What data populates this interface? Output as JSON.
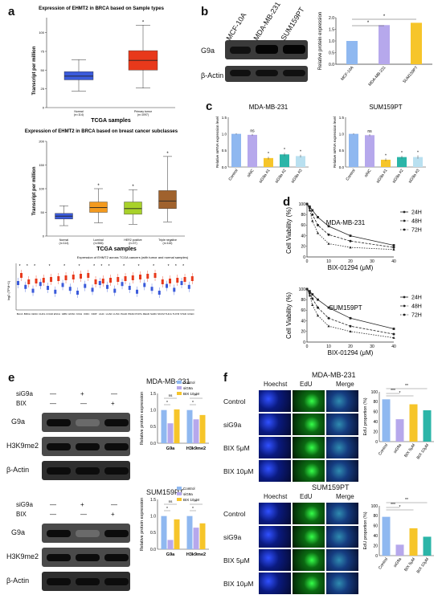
{
  "panels": [
    "a",
    "b",
    "c",
    "d",
    "e",
    "f"
  ],
  "a": {
    "title1": "Expression of EHMT2 in BRCA based on Sample types",
    "ylabel1": "Transcript per million",
    "xlabel1": "TCGA samples",
    "groups1": [
      {
        "name": "Normal",
        "n": "(n=114)",
        "q1": 37,
        "median": 42,
        "q3": 48,
        "lo": 22,
        "hi": 64,
        "color": "#3b5bdb"
      },
      {
        "name": "Primary tumor",
        "n": "(n=1097)",
        "q1": 50,
        "median": 63,
        "q3": 76,
        "lo": 26,
        "hi": 110,
        "color": "#e8391b"
      }
    ],
    "title2": "Expression of EHMT2 in BRCA based on breast cancer subclasses",
    "ylabel2": "Transcript per million",
    "xlabel2": "TCGA samples",
    "groups2": [
      {
        "name": "Normal",
        "n": "(n=114)",
        "q1": 36,
        "median": 42,
        "q3": 48,
        "lo": 22,
        "hi": 64,
        "color": "#3b5bdb"
      },
      {
        "name": "Luminal",
        "n": "(n=566)",
        "q1": 50,
        "median": 60,
        "q3": 72,
        "lo": 28,
        "hi": 100,
        "color": "#f39a1e"
      },
      {
        "name": "HER2 positive",
        "n": "(n=37)",
        "q1": 46,
        "median": 58,
        "q3": 72,
        "lo": 25,
        "hi": 98,
        "color": "#a8d12a"
      },
      {
        "name": "Triple negative",
        "n": "(n=116)",
        "q1": 58,
        "median": 74,
        "q3": 96,
        "lo": 30,
        "hi": 168,
        "color": "#a0622d"
      }
    ],
    "title3": "Expression of EHMT2 across TCGA cancers (with tumor and normal samples)",
    "cancers": [
      "BLCA",
      "BRCA",
      "CESC",
      "CHOL",
      "COAD",
      "ESCA",
      "GBM",
      "HNSC",
      "KICH",
      "KIRC",
      "KIRP",
      "LIHC",
      "LUAD",
      "LUSC",
      "PAAD",
      "PRAD",
      "PCPG",
      "READ",
      "SARC",
      "SKCM",
      "THCA",
      "THYM",
      "STAD",
      "UCEC"
    ],
    "ylabel3": "log2 (TPM+1)"
  },
  "b": {
    "lanes": [
      "MCF-10A",
      "MDA-MB-231",
      "SUM159PT"
    ],
    "rows": [
      "G9a",
      "β-Actin"
    ],
    "chart_data": {
      "type": "bar",
      "categories": [
        "MCF-10A",
        "MDA-MB-231",
        "SUM159PT"
      ],
      "values": [
        1.0,
        1.68,
        1.78
      ],
      "ylabel": "Relative protein expression",
      "ylim": [
        0,
        2.0
      ],
      "yticks": [
        "0.0",
        "0.5",
        "1.0",
        "1.5",
        "2.0"
      ],
      "colors": [
        "#8fb8f0",
        "#b6a8ec",
        "#f6c52a"
      ],
      "sig": [
        "*",
        "*"
      ]
    }
  },
  "c": {
    "chart_data": [
      {
        "type": "bar",
        "title": "MDA-MB-231",
        "categories": [
          "Control",
          "siNC",
          "siG9a #1",
          "siG9a #2",
          "siG9a #3"
        ],
        "values": [
          1.0,
          0.97,
          0.27,
          0.38,
          0.33
        ],
        "errors": [
          0.02,
          0.03,
          0.04,
          0.05,
          0.04
        ],
        "ylabel": "Relative mRNA expression level",
        "ylim": [
          0,
          1.5
        ],
        "yticks": [
          "0.0",
          "0.5",
          "1.0",
          "1.5"
        ],
        "colors": [
          "#8fb8f0",
          "#b6a8ec",
          "#f6c52a",
          "#2bb5a8",
          "#b9e0f0"
        ],
        "labels": [
          "",
          "ns",
          "*",
          "*",
          "*"
        ]
      },
      {
        "type": "bar",
        "title": "SUM159PT",
        "categories": [
          "Control",
          "siNC",
          "siG9a #1",
          "siG9a #2",
          "siG9a #3"
        ],
        "values": [
          1.0,
          0.96,
          0.22,
          0.3,
          0.3
        ],
        "errors": [
          0.02,
          0.03,
          0.04,
          0.04,
          0.05
        ],
        "ylabel": "Relative mRNA expression level",
        "ylim": [
          0,
          1.5
        ],
        "yticks": [
          "0.0",
          "0.5",
          "1.0",
          "1.5"
        ],
        "colors": [
          "#8fb8f0",
          "#b6a8ec",
          "#f6c52a",
          "#2bb5a8",
          "#b9e0f0"
        ],
        "labels": [
          "",
          "ns",
          "*",
          "*",
          "*"
        ]
      }
    ]
  },
  "d": {
    "chart_data": [
      {
        "type": "line",
        "title": "MDA-MB-231",
        "xlabel": "BIX-01294 (μM)",
        "ylabel": "Cell Viability (%)",
        "x": [
          0,
          1.25,
          2.5,
          5,
          10,
          20,
          40
        ],
        "xticks": [
          "0",
          "10",
          "20",
          "30",
          "40"
        ],
        "ylim": [
          0,
          100
        ],
        "yticks": [
          "0",
          "20",
          "40",
          "60",
          "80",
          "100"
        ],
        "series": [
          {
            "name": "24H",
            "values": [
              100,
              95,
              88,
              75,
              58,
              40,
              22
            ]
          },
          {
            "name": "48H",
            "values": [
              100,
              92,
              80,
              60,
              42,
              30,
              18
            ]
          },
          {
            "name": "72H",
            "values": [
              100,
              88,
              68,
              45,
              25,
              18,
              14
            ]
          }
        ]
      },
      {
        "type": "line",
        "title": "SUM159PT",
        "xlabel": "BIX-01294 (μM)",
        "ylabel": "Cell Viability (%)",
        "x": [
          0,
          1.25,
          2.5,
          5,
          10,
          20,
          40
        ],
        "xticks": [
          "0",
          "10",
          "20",
          "30",
          "40"
        ],
        "ylim": [
          0,
          100
        ],
        "yticks": [
          "0",
          "20",
          "40",
          "60",
          "80",
          "100"
        ],
        "series": [
          {
            "name": "24H",
            "values": [
              100,
              96,
              90,
              80,
              65,
              45,
              25
            ]
          },
          {
            "name": "48H",
            "values": [
              100,
              92,
              82,
              65,
              45,
              30,
              15
            ]
          },
          {
            "name": "72H",
            "values": [
              100,
              88,
              70,
              50,
              30,
              20,
              8
            ]
          }
        ]
      }
    ]
  },
  "e": {
    "blots": [
      {
        "cell": "MDA-MB-231",
        "treat_rows": [
          "siG9a",
          "BIX"
        ],
        "signs": [
          [
            "—",
            "+",
            "—"
          ],
          [
            "—",
            "—",
            "+"
          ]
        ],
        "rows": [
          "G9a",
          "H3K9me2",
          "β-Actin"
        ]
      },
      {
        "cell": "SUM159PT",
        "treat_rows": [
          "siG9a",
          "BIX"
        ],
        "signs": [
          [
            "—",
            "+",
            "—"
          ],
          [
            "—",
            "—",
            "+"
          ]
        ],
        "rows": [
          "G9a",
          "H3K9me2",
          "β-Actin"
        ]
      }
    ],
    "chart_data": [
      {
        "type": "bar",
        "categories": [
          "G9a",
          "H3k9me2"
        ],
        "ylabel": "Relative protein expression",
        "ylim": [
          0,
          1.5
        ],
        "yticks": [
          "0.0",
          "0.5",
          "1.0",
          "1.5"
        ],
        "series": [
          {
            "name": "Control",
            "values": [
              1.0,
              1.0
            ],
            "color": "#8fb8f0"
          },
          {
            "name": "siG9a",
            "values": [
              0.6,
              0.72
            ],
            "color": "#b6a8ec"
          },
          {
            "name": "BIX 10μM",
            "values": [
              1.02,
              0.85
            ],
            "color": "#f6c52a"
          }
        ],
        "sig": [
          "ns",
          "*",
          "*",
          "*"
        ]
      },
      {
        "type": "bar",
        "categories": [
          "G9a",
          "H3k9me2"
        ],
        "ylabel": "Relative protein expression",
        "ylim": [
          0,
          1.5
        ],
        "yticks": [
          "0.0",
          "0.5",
          "1.0",
          "1.5"
        ],
        "series": [
          {
            "name": "Control",
            "values": [
              1.0,
              1.0
            ],
            "color": "#8fb8f0"
          },
          {
            "name": "siG9a",
            "values": [
              0.28,
              0.65
            ],
            "color": "#b6a8ec"
          },
          {
            "name": "BIX 10μM",
            "values": [
              0.9,
              0.78
            ],
            "color": "#f6c52a"
          }
        ],
        "sig": [
          "ns",
          "*",
          "*",
          "*"
        ]
      }
    ]
  },
  "f": {
    "blocks": [
      {
        "cell": "MDA-MB-231",
        "cols": [
          "Hoechst",
          "EdU",
          "Merge"
        ],
        "rows": [
          "Control",
          "siG9a",
          "BIX 5μM",
          "BIX 10μM"
        ]
      },
      {
        "cell": "SUM159PT",
        "cols": [
          "Hoechst",
          "EdU",
          "Merge"
        ],
        "rows": [
          "Control",
          "siG9a",
          "BIX 5μM",
          "BIX 10μM"
        ]
      }
    ],
    "chart_data": [
      {
        "type": "bar",
        "categories": [
          "Control",
          "siG9a",
          "BIX 5μM",
          "BIX 10μM"
        ],
        "values": [
          85,
          45,
          75,
          63
        ],
        "ylabel": "EdU proportion (%)",
        "ylim": [
          0,
          100
        ],
        "yticks": [
          "0",
          "20",
          "40",
          "60",
          "80",
          "100"
        ],
        "colors": [
          "#8fb8f0",
          "#b6a8ec",
          "#f6c52a",
          "#2bb5a8"
        ],
        "sig": [
          "***",
          "*",
          "**"
        ]
      },
      {
        "type": "bar",
        "categories": [
          "Control",
          "siG9a",
          "BIX 5μM",
          "BIX 10μM"
        ],
        "values": [
          78,
          22,
          55,
          38
        ],
        "ylabel": "EdU proportion (%)",
        "ylim": [
          0,
          100
        ],
        "yticks": [
          "0",
          "20",
          "40",
          "60",
          "80",
          "100"
        ],
        "colors": [
          "#8fb8f0",
          "#b6a8ec",
          "#f6c52a",
          "#2bb5a8"
        ],
        "sig": [
          "***",
          "*",
          "**"
        ]
      }
    ]
  }
}
